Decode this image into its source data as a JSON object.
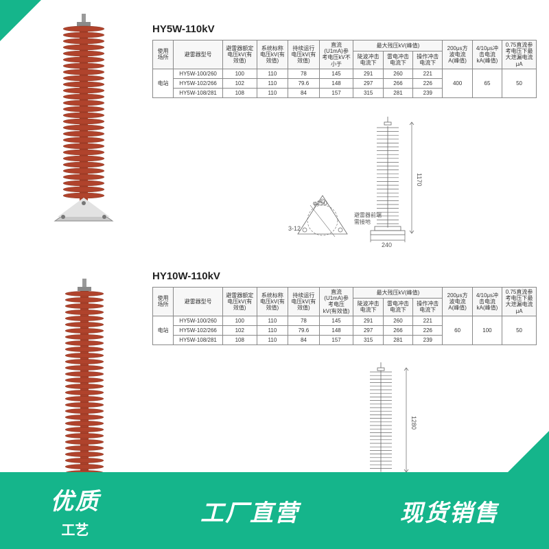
{
  "accent_color": "#15b58b",
  "arrester_color": "#b0432c",
  "section1": {
    "title": "HY5W-110kV",
    "photo_sheds": 28,
    "table": {
      "header_row1": [
        "使用场所",
        "避雷器型号",
        "避雷器额定电压kV(有效值)",
        "系统标称电压kV(有效值)",
        "持续运行电压kV(有效值)",
        "直流(U1mA)参考电压kV不小于",
        "最大残压kV(峰值)",
        "",
        "",
        "200μs方波电流A(峰值)",
        "4/10μs冲击电流kA(峰值)",
        "0.75直流参考电压下最大泄漏电流μA"
      ],
      "header_row2": [
        "",
        "",
        "",
        "",
        "",
        "",
        "陡波冲击电流下",
        "雷电冲击电流下",
        "操作冲击电流下",
        "",
        "",
        ""
      ],
      "rows": [
        [
          "电站",
          "HY5W-100/260",
          "100",
          "110",
          "78",
          "145",
          "291",
          "260",
          "221",
          "400",
          "65",
          "50"
        ],
        [
          "",
          "HY5W-102/266",
          "102",
          "110",
          "79.6",
          "148",
          "297",
          "266",
          "226",
          "",
          "",
          ""
        ],
        [
          "",
          "HY5W-108/281",
          "108",
          "110",
          "84",
          "157",
          "315",
          "281",
          "239",
          "",
          "",
          ""
        ]
      ]
    },
    "dim": {
      "height_label": "1170",
      "base_width": "240",
      "bolt_circle": "φ250",
      "bolt": "3-12",
      "side_note_1": "避雷器前端",
      "side_note_2": "需接地"
    }
  },
  "section2": {
    "title": "HY10W-110kV",
    "photo_sheds": 30,
    "table": {
      "header_row1": [
        "使用场所",
        "避雷器型号",
        "避雷器额定电压kV(有效值)",
        "系统标称电压kV(有效值)",
        "持续运行电压kV(有效值)",
        "直流(U1mA)参考电压kV(有效值)",
        "最大残压kV(峰值)",
        "",
        "",
        "200μs方波电流A(峰值)",
        "4/10μs冲击电流kA(峰值)",
        "0.75直流参考电压下最大泄漏电流μA"
      ],
      "header_row2": [
        "",
        "",
        "",
        "",
        "",
        "",
        "陡波冲击电流下",
        "雷电冲击电流下",
        "操作冲击电流下",
        "",
        "",
        ""
      ],
      "rows": [
        [
          "电站",
          "HY5W-100/260",
          "100",
          "110",
          "78",
          "145",
          "291",
          "260",
          "221",
          "60",
          "100",
          "50"
        ],
        [
          "",
          "HY5W-102/266",
          "102",
          "110",
          "79.6",
          "148",
          "297",
          "266",
          "226",
          "",
          "",
          ""
        ],
        [
          "",
          "HY5W-108/281",
          "108",
          "110",
          "84",
          "157",
          "315",
          "281",
          "239",
          "",
          "",
          ""
        ]
      ]
    },
    "dim": {
      "height_label": "1280"
    }
  },
  "promo": {
    "left_big": "优质",
    "left_small": "工艺",
    "mid": "工厂直营",
    "right": "现货销售"
  }
}
